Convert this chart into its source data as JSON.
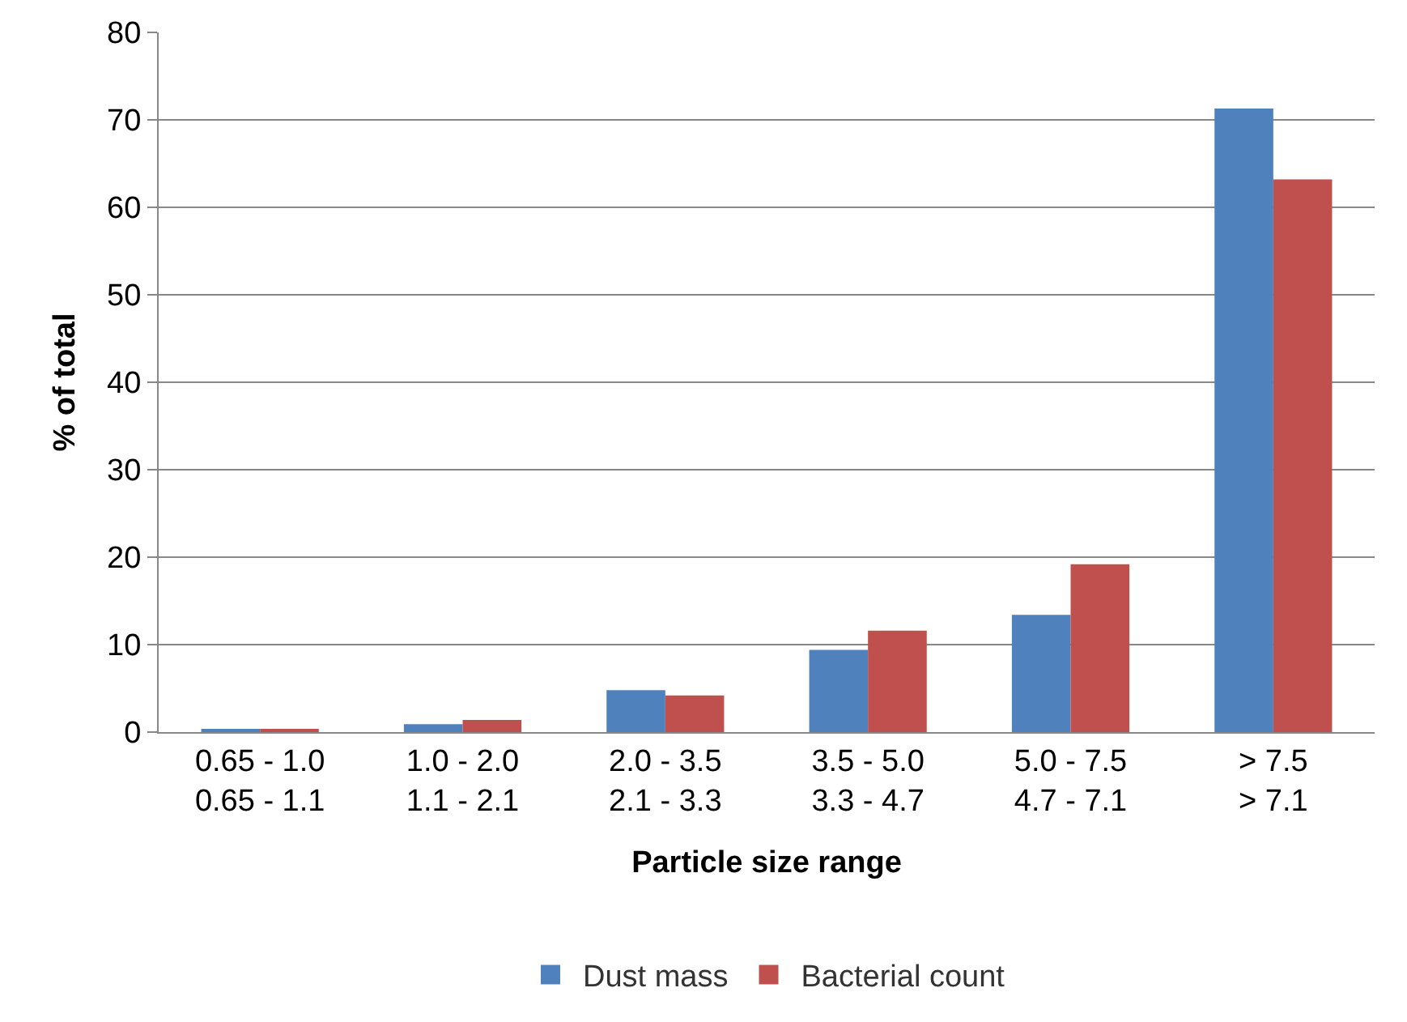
{
  "chart_data": {
    "type": "bar",
    "xlabel": "Particle size range",
    "ylabel": "% of total",
    "categories": [
      "0.65 - 1.0\n0.65 - 1.1",
      "1.0 - 2.0\n1.1 - 2.1",
      "2.0 - 3.5\n2.1 - 3.3",
      "3.5 - 5.0\n3.3 - 4.7",
      "5.0 - 7.5\n4.7 - 7.1",
      "> 7.5\n> 7.1"
    ],
    "series": [
      {
        "name": "Dust mass",
        "color": "#4f81bd",
        "values": [
          0.3,
          0.9,
          4.8,
          9.4,
          13.4,
          71.3
        ]
      },
      {
        "name": "Bacterial count",
        "color": "#c0504d",
        "values": [
          0.3,
          1.4,
          4.2,
          11.6,
          19.2,
          63.2
        ]
      }
    ],
    "ylim": [
      0,
      80
    ],
    "yticks": [
      0,
      10,
      20,
      30,
      40,
      50,
      60,
      70,
      80
    ],
    "grid": "y",
    "legend": "bottom"
  }
}
